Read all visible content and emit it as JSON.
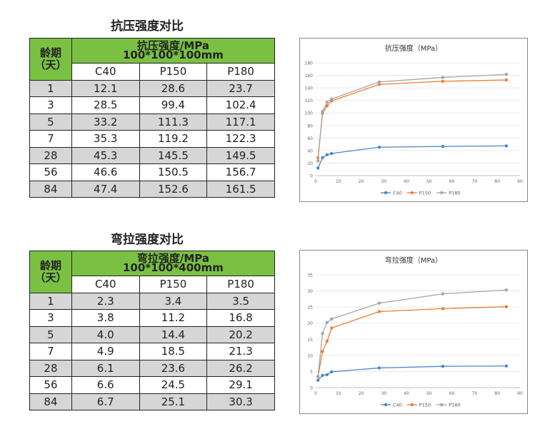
{
  "sections": [
    {
      "title": "抗压强度对比",
      "table": {
        "age_header": [
          "龄期",
          "（天）"
        ],
        "strength_header": [
          "抗压强度/MPa",
          "100*100*100mm"
        ],
        "columns": [
          "C40",
          "P150",
          "P180"
        ],
        "rows": [
          [
            "1",
            "12.1",
            "28.6",
            "23.7"
          ],
          [
            "3",
            "28.5",
            "99.4",
            "102.4"
          ],
          [
            "5",
            "33.2",
            "111.3",
            "117.1"
          ],
          [
            "7",
            "35.3",
            "119.2",
            "122.3"
          ],
          [
            "28",
            "45.3",
            "145.5",
            "149.5"
          ],
          [
            "56",
            "46.6",
            "150.5",
            "156.7"
          ],
          [
            "84",
            "47.4",
            "152.6",
            "161.5"
          ]
        ]
      }
    },
    {
      "title": "弯拉强度对比",
      "table": {
        "age_header": [
          "龄期",
          "（天）"
        ],
        "strength_header": [
          "弯拉强度/MPa",
          "100*100*400mm"
        ],
        "columns": [
          "C40",
          "P150",
          "P180"
        ],
        "rows": [
          [
            "1",
            "2.3",
            "3.4",
            "3.5"
          ],
          [
            "3",
            "3.8",
            "11.2",
            "16.8"
          ],
          [
            "5",
            "4.0",
            "14.4",
            "20.2"
          ],
          [
            "7",
            "4.9",
            "18.5",
            "21.3"
          ],
          [
            "28",
            "6.1",
            "23.6",
            "26.2"
          ],
          [
            "56",
            "6.6",
            "24.5",
            "29.1"
          ],
          [
            "84",
            "6.7",
            "25.1",
            "30.3"
          ]
        ]
      }
    }
  ],
  "chart_data": [
    {
      "type": "line",
      "title": "抗压强度（MPa）",
      "xlabel": "",
      "ylabel": "",
      "xlim": [
        0,
        90
      ],
      "ylim": [
        0,
        180
      ],
      "xticks": [
        0,
        10,
        20,
        30,
        40,
        50,
        60,
        70,
        80,
        90
      ],
      "yticks": [
        0,
        20,
        40,
        60,
        80,
        100,
        120,
        140,
        160,
        180
      ],
      "grid": true,
      "legend": "bottom",
      "x": [
        1,
        3,
        5,
        7,
        28,
        56,
        84
      ],
      "series": [
        {
          "name": "C40",
          "color": "#4a86c8",
          "values": [
            12.1,
            28.5,
            33.2,
            35.3,
            45.3,
            46.6,
            47.4
          ]
        },
        {
          "name": "P150",
          "color": "#ed7d31",
          "values": [
            28.6,
            99.4,
            111.3,
            119.2,
            145.5,
            150.5,
            152.6
          ]
        },
        {
          "name": "P180",
          "color": "#a5a5a5",
          "values": [
            23.7,
            102.4,
            117.1,
            122.3,
            149.5,
            156.7,
            161.5
          ]
        }
      ]
    },
    {
      "type": "line",
      "title": "弯拉强度（MPa）",
      "xlabel": "",
      "ylabel": "",
      "xlim": [
        0,
        90
      ],
      "ylim": [
        0,
        35
      ],
      "xticks": [
        0,
        10,
        20,
        30,
        40,
        50,
        60,
        70,
        80,
        90
      ],
      "yticks": [
        0,
        5,
        10,
        15,
        20,
        25,
        30,
        35
      ],
      "grid": true,
      "legend": "bottom",
      "x": [
        1,
        3,
        5,
        7,
        28,
        56,
        84
      ],
      "series": [
        {
          "name": "C40",
          "color": "#4a86c8",
          "values": [
            2.3,
            3.8,
            4.0,
            4.9,
            6.1,
            6.6,
            6.7
          ]
        },
        {
          "name": "P150",
          "color": "#ed7d31",
          "values": [
            3.4,
            11.2,
            14.4,
            18.5,
            23.6,
            24.5,
            25.1
          ]
        },
        {
          "name": "P180",
          "color": "#a5a5a5",
          "values": [
            3.5,
            16.8,
            20.2,
            21.3,
            26.2,
            29.1,
            30.3
          ]
        }
      ]
    }
  ]
}
